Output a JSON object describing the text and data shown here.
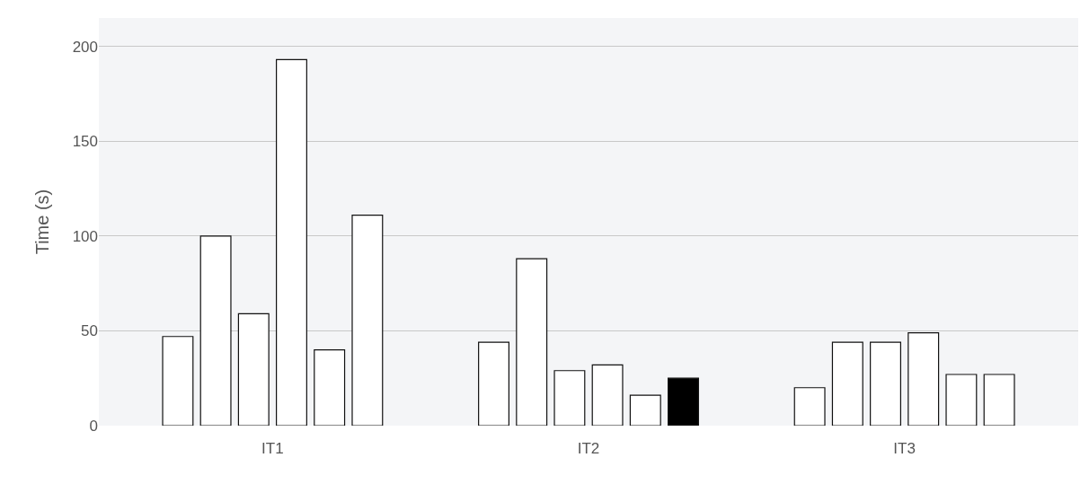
{
  "chart_data": {
    "type": "bar",
    "ylabel": "Time (s)",
    "categories": [
      "IT1",
      "IT2",
      "IT3"
    ],
    "series": [
      {
        "color": "#ffffff",
        "values": [
          47,
          44,
          20
        ]
      },
      {
        "color": "#ffffff",
        "values": [
          100,
          88,
          44
        ]
      },
      {
        "color": "#ffffff",
        "values": [
          59,
          29,
          44
        ]
      },
      {
        "color": "#ffffff",
        "values": [
          193,
          32,
          49
        ]
      },
      {
        "color": "#ffffff",
        "values": [
          40,
          16,
          27
        ]
      },
      {
        "color": "#ffffff",
        "colors": [
          "#ffffff",
          "#000000",
          "#ffffff"
        ],
        "values": [
          111,
          25,
          27
        ]
      }
    ],
    "ylim": [
      0,
      215
    ],
    "yticks": [
      0,
      50,
      100,
      150,
      200
    ],
    "grid": "y"
  }
}
